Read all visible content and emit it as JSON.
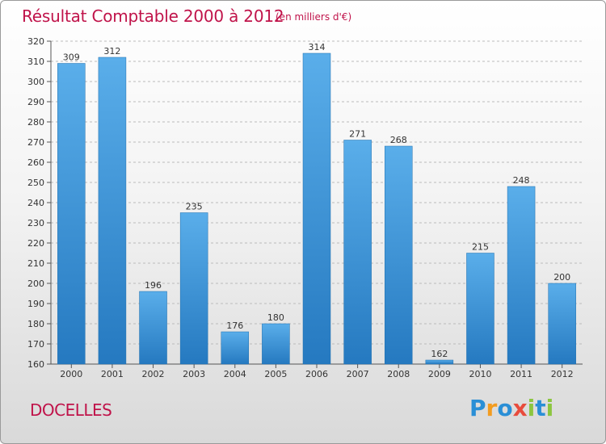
{
  "header": {
    "title": "Résultat Comptable 2000 à 2012",
    "subtitle": "(en milliers d'€)"
  },
  "footer": {
    "town": "DOCELLES",
    "logo_letters": [
      {
        "ch": "P",
        "color": "#2a8fd6"
      },
      {
        "ch": "r",
        "color": "#f39c1f"
      },
      {
        "ch": "o",
        "color": "#2a8fd6"
      },
      {
        "ch": "x",
        "color": "#e84c3d"
      },
      {
        "ch": "i",
        "color": "#8cc63f"
      },
      {
        "ch": "t",
        "color": "#2a8fd6"
      },
      {
        "ch": "i",
        "color": "#8cc63f"
      }
    ]
  },
  "colors": {
    "accent": "#c0134a",
    "bar_top": "#5aaeea",
    "bar_bottom": "#2579c0",
    "grid": "#bbbbbb"
  },
  "chart_data": {
    "type": "bar",
    "title": "Résultat Comptable 2000 à 2012",
    "xlabel": "",
    "ylabel": "",
    "categories": [
      "2000",
      "2001",
      "2002",
      "2003",
      "2004",
      "2005",
      "2006",
      "2007",
      "2008",
      "2009",
      "2010",
      "2011",
      "2012"
    ],
    "values": [
      309,
      312,
      196,
      235,
      176,
      180,
      314,
      271,
      268,
      162,
      215,
      248,
      200
    ],
    "ylim": [
      160,
      320
    ],
    "yticks": [
      160,
      170,
      180,
      190,
      200,
      210,
      220,
      230,
      240,
      250,
      260,
      270,
      280,
      290,
      300,
      310,
      320
    ],
    "grid": true
  }
}
